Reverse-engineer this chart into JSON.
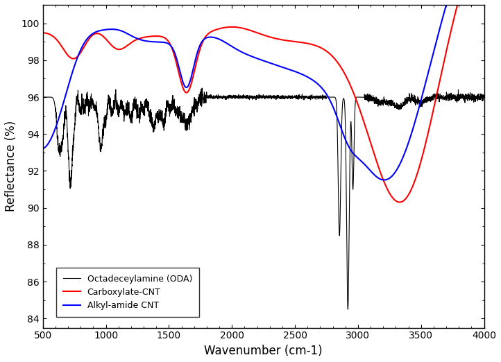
{
  "title": "",
  "xlabel": "Wavenumber (cm-1)",
  "ylabel": "Reflectance (%)",
  "xlim": [
    500,
    4000
  ],
  "ylim": [
    83.5,
    101
  ],
  "xticks": [
    500,
    1000,
    1500,
    2000,
    2500,
    3000,
    3500,
    4000
  ],
  "yticks": [
    84,
    86,
    88,
    90,
    92,
    94,
    96,
    98,
    100
  ],
  "legend": [
    "Octadeceylamine (ODA)",
    "Carboxylate-CNT",
    "Alkyl-amide CNT"
  ],
  "line_colors": [
    "black",
    "red",
    "blue"
  ],
  "background": "white",
  "figsize": [
    7.22,
    5.22
  ],
  "dpi": 100
}
